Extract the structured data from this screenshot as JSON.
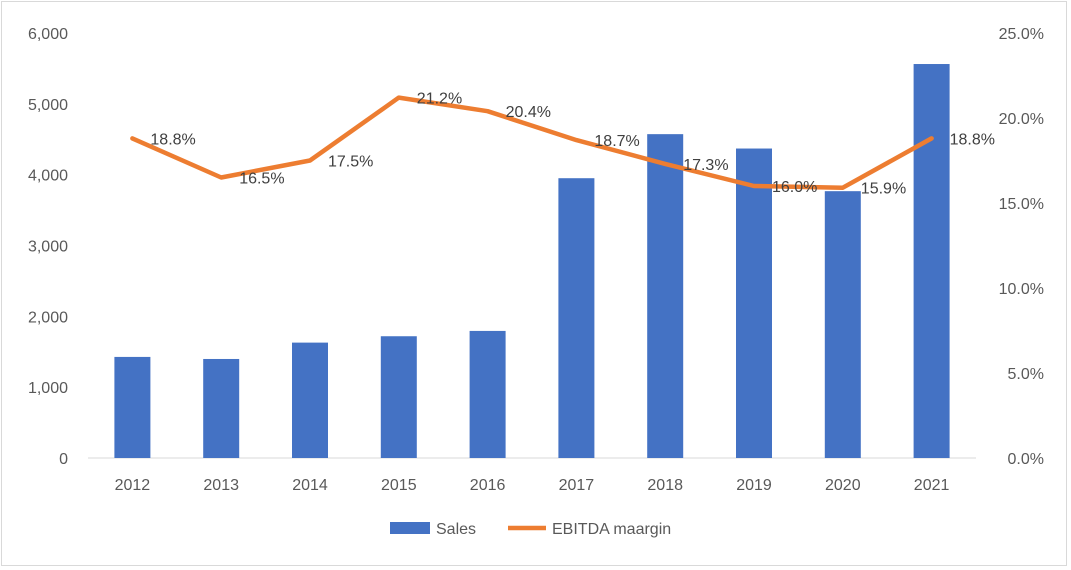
{
  "chart_data": {
    "type": "bar+line",
    "categories": [
      "2012",
      "2013",
      "2014",
      "2015",
      "2016",
      "2017",
      "2018",
      "2019",
      "2020",
      "2021"
    ],
    "series": [
      {
        "name": "Sales",
        "type": "bar",
        "axis": "left",
        "color": "#4472C4",
        "values": [
          1427,
          1398,
          1629,
          1719,
          1794,
          3950,
          4572,
          4369,
          3767,
          5562
        ]
      },
      {
        "name": "EBITDA maargin",
        "type": "line",
        "axis": "right",
        "color": "#ED7D31",
        "values": [
          18.8,
          16.5,
          17.5,
          21.2,
          20.4,
          18.7,
          17.3,
          16.0,
          15.9,
          18.8
        ],
        "labels": [
          "18.8%",
          "16.5%",
          "17.5%",
          "21.2%",
          "20.4%",
          "18.7%",
          "17.3%",
          "16.0%",
          "15.9%",
          "18.8%"
        ]
      }
    ],
    "y_left": {
      "range": [
        0,
        6000
      ],
      "ticks": [
        "0",
        "1,000",
        "2,000",
        "3,000",
        "4,000",
        "5,000",
        "6,000"
      ]
    },
    "y_right": {
      "range": [
        0,
        25
      ],
      "ticks": [
        "0.0%",
        "5.0%",
        "10.0%",
        "15.0%",
        "20.0%",
        "25.0%"
      ]
    },
    "legend": {
      "position": "bottom",
      "items": [
        "Sales",
        "EBITDA maargin"
      ]
    },
    "grid": false
  }
}
